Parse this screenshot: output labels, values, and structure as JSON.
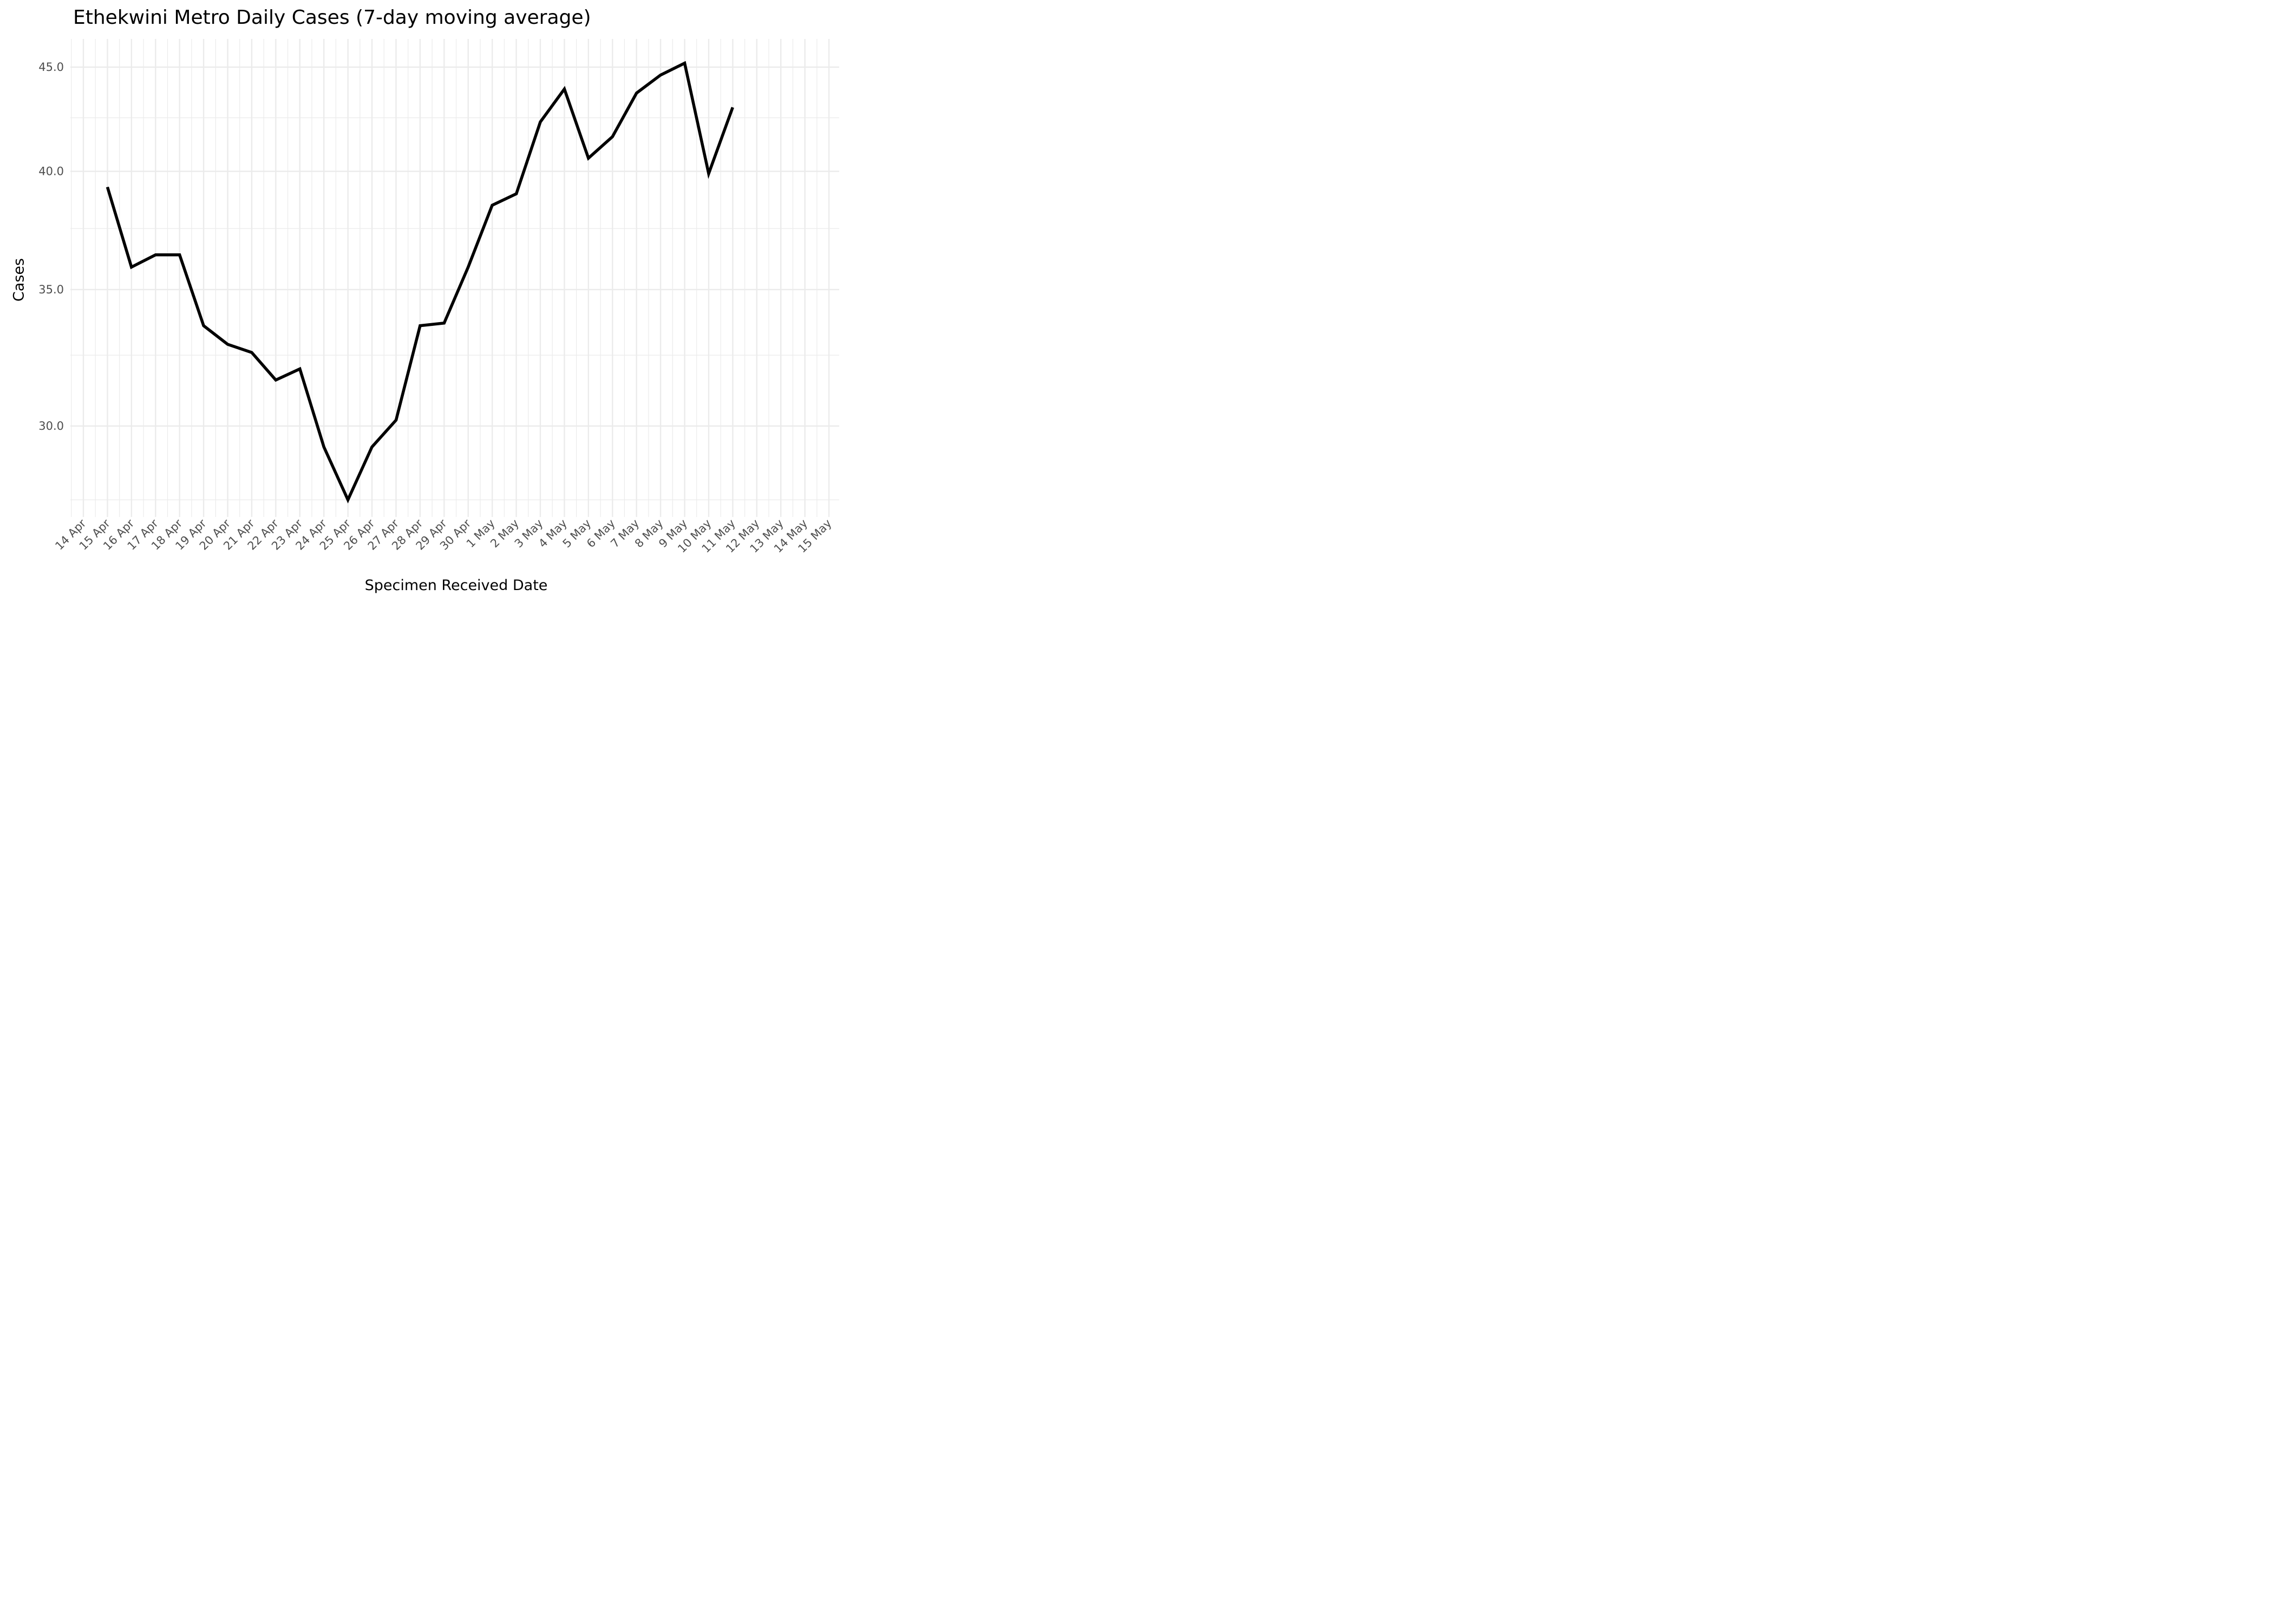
{
  "chart_data": {
    "type": "line",
    "title": "Ethekwini Metro Daily Cases (7-day moving average)",
    "xlabel": "Specimen Received Date",
    "ylabel": "Cases",
    "y_scale": "log10",
    "ylim": [
      27.0,
      46.0
    ],
    "y_ticks": [
      30.0,
      35.0,
      40.0,
      45.0
    ],
    "y_tick_labels": [
      "30.0",
      "35.0",
      "40.0",
      "45.0"
    ],
    "y_minor_ticks": [
      27.6,
      32.5,
      37.5,
      42.5
    ],
    "x_tick_labels": [
      "14 Apr",
      "15 Apr",
      "16 Apr",
      "17 Apr",
      "18 Apr",
      "19 Apr",
      "20 Apr",
      "21 Apr",
      "22 Apr",
      "23 Apr",
      "24 Apr",
      "25 Apr",
      "26 Apr",
      "27 Apr",
      "28 Apr",
      "29 Apr",
      "30 Apr",
      "1 May",
      "2 May",
      "3 May",
      "4 May",
      "5 May",
      "6 May",
      "7 May",
      "8 May",
      "9 May",
      "10 May",
      "11 May",
      "12 May",
      "13 May",
      "14 May",
      "15 May"
    ],
    "grid": true,
    "line_color": "#000000",
    "grid_color": "#ebebeb",
    "series": [
      {
        "x": [
          "15 Apr",
          "16 Apr",
          "17 Apr",
          "18 Apr",
          "19 Apr",
          "20 Apr",
          "21 Apr",
          "22 Apr",
          "23 Apr",
          "24 Apr",
          "25 Apr",
          "26 Apr",
          "27 Apr",
          "28 Apr",
          "29 Apr",
          "30 Apr",
          "1 May",
          "2 May",
          "3 May",
          "4 May",
          "5 May",
          "6 May",
          "7 May",
          "8 May",
          "9 May",
          "10 May",
          "11 May"
        ],
        "values": [
          39.3,
          35.9,
          36.4,
          36.4,
          33.6,
          32.9,
          32.6,
          31.6,
          32.0,
          29.3,
          27.6,
          29.3,
          30.2,
          33.6,
          33.7,
          35.9,
          38.5,
          39.0,
          42.3,
          43.9,
          40.6,
          41.6,
          43.7,
          44.6,
          45.2,
          39.9,
          43.0
        ]
      }
    ]
  }
}
